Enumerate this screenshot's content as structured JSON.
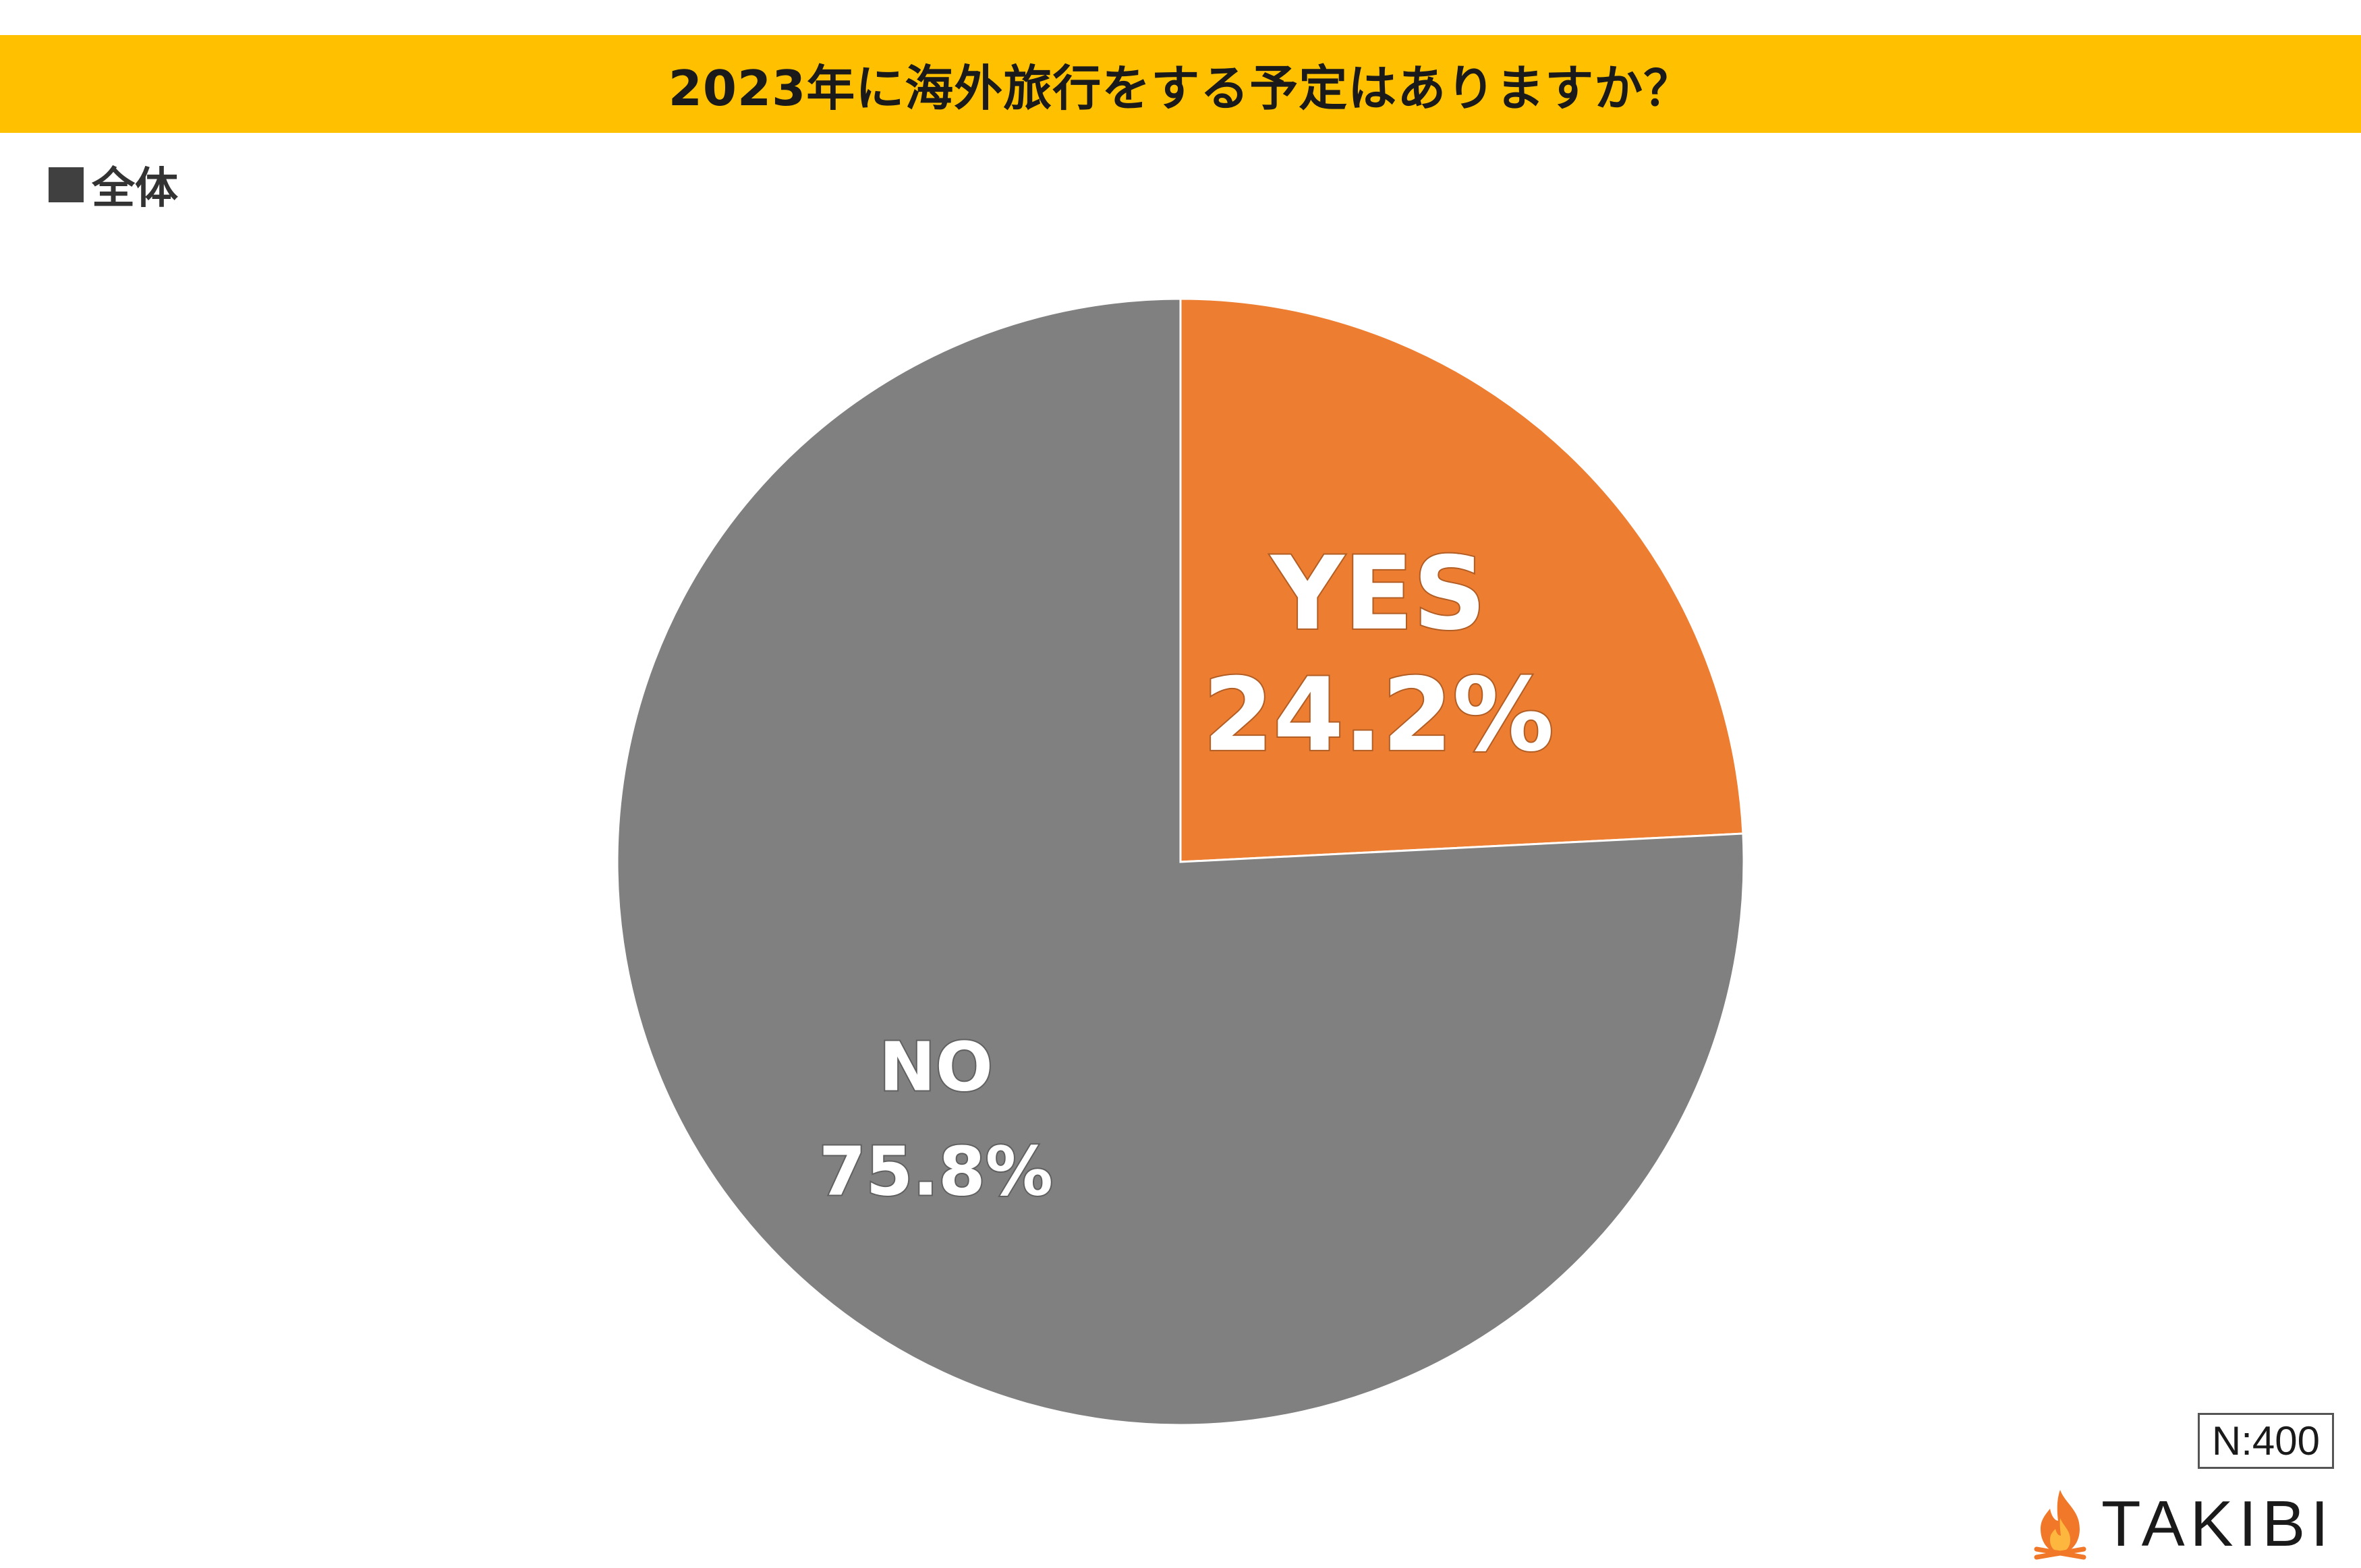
{
  "header": {
    "title": "2023年に海外旅行をする予定はありますか？",
    "subtitle": "全体",
    "bar_color": "#FFC000"
  },
  "chart_data": {
    "type": "pie",
    "title": "2023年に海外旅行をする予定はありますか？",
    "subtitle": "全体",
    "slices": [
      {
        "label": "YES",
        "value": 24.2,
        "value_label": "24.2%",
        "color": "#ED7D31"
      },
      {
        "label": "NO",
        "value": 75.8,
        "value_label": "75.8%",
        "color": "#808080"
      }
    ],
    "start": "12 o'clock",
    "direction": "clockwise",
    "legend": "none"
  },
  "footer": {
    "sample_size": "N:400",
    "brand": "TAKIBI",
    "brand_icon": "flame-icon"
  }
}
